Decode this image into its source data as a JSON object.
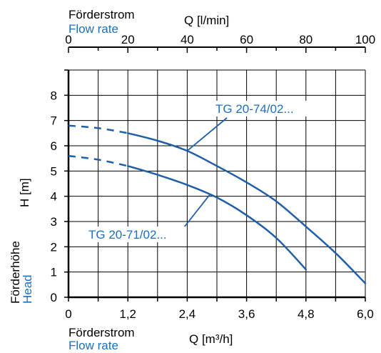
{
  "chart_data": {
    "type": "line",
    "colors": {
      "series": "#1f5fa8",
      "accent_text": "#1a6fc0",
      "axis": "#000000",
      "grid": "#000000"
    },
    "top_axis": {
      "label_de": "Förderstrom",
      "label_en": "Flow rate",
      "unit_label": "Q [l/min]",
      "range": [
        0,
        100
      ],
      "ticks": [
        "0",
        "20",
        "40",
        "60",
        "80",
        "100"
      ],
      "tick_values": [
        0,
        20,
        40,
        60,
        80,
        100
      ]
    },
    "x_axis": {
      "label_de": "Förderstrom",
      "label_en": "Flow rate",
      "unit_label": "Q [m³/h]",
      "range": [
        0,
        6.0
      ],
      "ticks": [
        "0",
        "1,2",
        "2,4",
        "3,6",
        "4,8",
        "6,0"
      ],
      "tick_values": [
        0,
        1.2,
        2.4,
        3.6,
        4.8,
        6.0
      ]
    },
    "y_axis": {
      "label_de": "Förderhöhe",
      "label_en": "Head",
      "unit_label": "H [m]",
      "range": [
        0,
        9
      ],
      "ticks": [
        "0",
        "1",
        "2",
        "3",
        "4",
        "5",
        "6",
        "7",
        "8"
      ],
      "tick_values": [
        0,
        1,
        2,
        3,
        4,
        5,
        6,
        7,
        8
      ]
    },
    "grid": true,
    "series": [
      {
        "name": "TG 20-74/02...",
        "dashed_x_max": 1.2,
        "points": [
          [
            0,
            6.8
          ],
          [
            0.6,
            6.7
          ],
          [
            1.2,
            6.5
          ],
          [
            1.8,
            6.2
          ],
          [
            2.4,
            5.8
          ],
          [
            3.0,
            5.2
          ],
          [
            3.6,
            4.55
          ],
          [
            4.2,
            3.8
          ],
          [
            4.8,
            2.8
          ],
          [
            5.4,
            1.75
          ],
          [
            6.0,
            0.55
          ]
        ],
        "label_anchor": [
          2.4,
          5.8
        ]
      },
      {
        "name": "TG 20-71/02...",
        "dashed_x_max": 1.2,
        "points": [
          [
            0,
            5.6
          ],
          [
            0.6,
            5.45
          ],
          [
            1.2,
            5.2
          ],
          [
            1.8,
            4.85
          ],
          [
            2.4,
            4.45
          ],
          [
            3.0,
            3.95
          ],
          [
            3.6,
            3.25
          ],
          [
            4.2,
            2.35
          ],
          [
            4.8,
            1.1
          ]
        ],
        "label_anchor": [
          2.85,
          4.05
        ]
      }
    ]
  }
}
